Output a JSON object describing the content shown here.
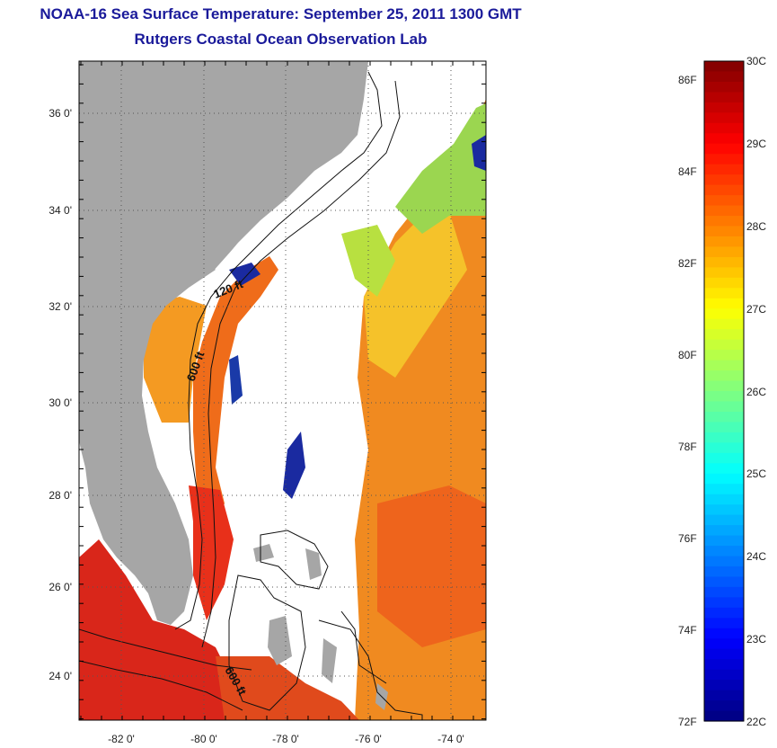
{
  "title": "NOAA-16 Sea Surface Temperature:  September 25, 2011 1300 GMT",
  "subtitle": "Rutgers Coastal Ocean Observation Lab",
  "map": {
    "lon_ticks": [
      "-82 0'",
      "-80 0'",
      "-78 0'",
      "-76 0'",
      "-74 0'"
    ],
    "lat_ticks": [
      "36 0'",
      "34 0'",
      "32 0'",
      "30 0'",
      "28 0'",
      "26 0'",
      "24 0'"
    ],
    "contour_labels": [
      "120 ft",
      "600 ft",
      "600 ft"
    ],
    "colors": {
      "land": "#a6a6a6",
      "ocean_nodata": "#ffffff"
    }
  },
  "colorbar": {
    "fahrenheit_labels": [
      "86F",
      "84F",
      "82F",
      "80F",
      "78F",
      "76F",
      "74F",
      "72F"
    ],
    "celsius_labels": [
      "30C",
      "29C",
      "28C",
      "27C",
      "26C",
      "25C",
      "24C",
      "23C",
      "22C"
    ],
    "range_c": [
      22,
      30
    ]
  }
}
